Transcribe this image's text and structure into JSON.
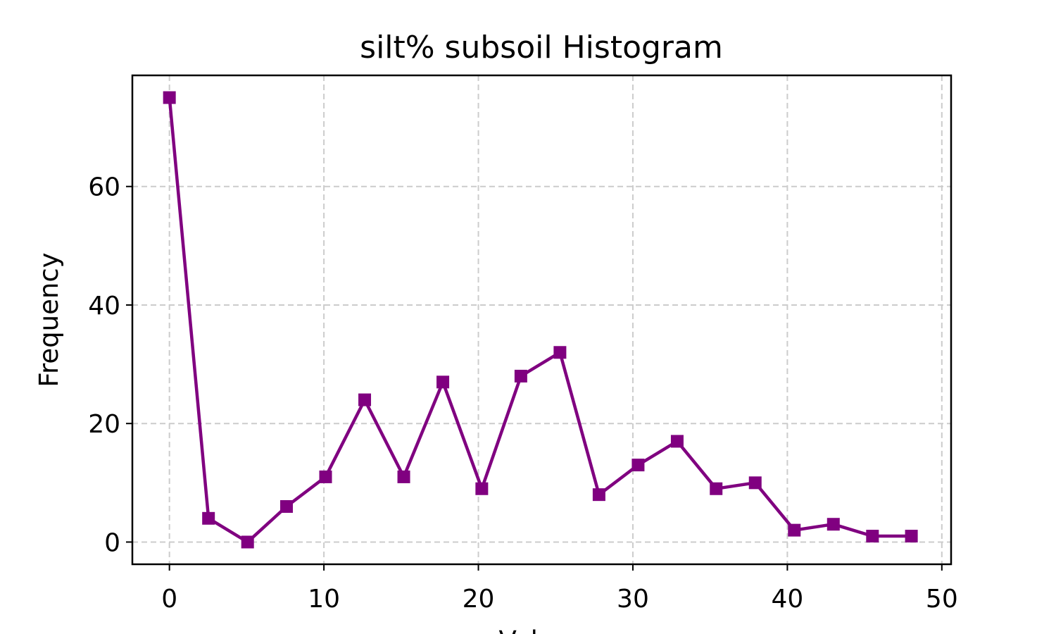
{
  "chart_data": {
    "type": "line",
    "title": "silt% subsoil Histogram",
    "xlabel": "Values",
    "ylabel": "Frequency",
    "xlim": [
      -2.4,
      50.6
    ],
    "ylim": [
      -3.75,
      78.75
    ],
    "xticks": [
      0,
      10,
      20,
      30,
      40,
      50
    ],
    "yticks": [
      0,
      20,
      40,
      60
    ],
    "grid": true,
    "color": "#800080",
    "marker": "square",
    "x": [
      0.0,
      2.53,
      5.06,
      7.58,
      10.11,
      12.64,
      15.17,
      17.7,
      20.22,
      22.75,
      25.28,
      27.81,
      30.34,
      32.87,
      35.39,
      37.92,
      40.45,
      42.98,
      45.51,
      48.03
    ],
    "values": [
      75,
      4,
      0,
      6,
      11,
      24,
      11,
      27,
      9,
      28,
      32,
      8,
      13,
      17,
      9,
      10,
      2,
      3,
      1,
      1
    ]
  }
}
